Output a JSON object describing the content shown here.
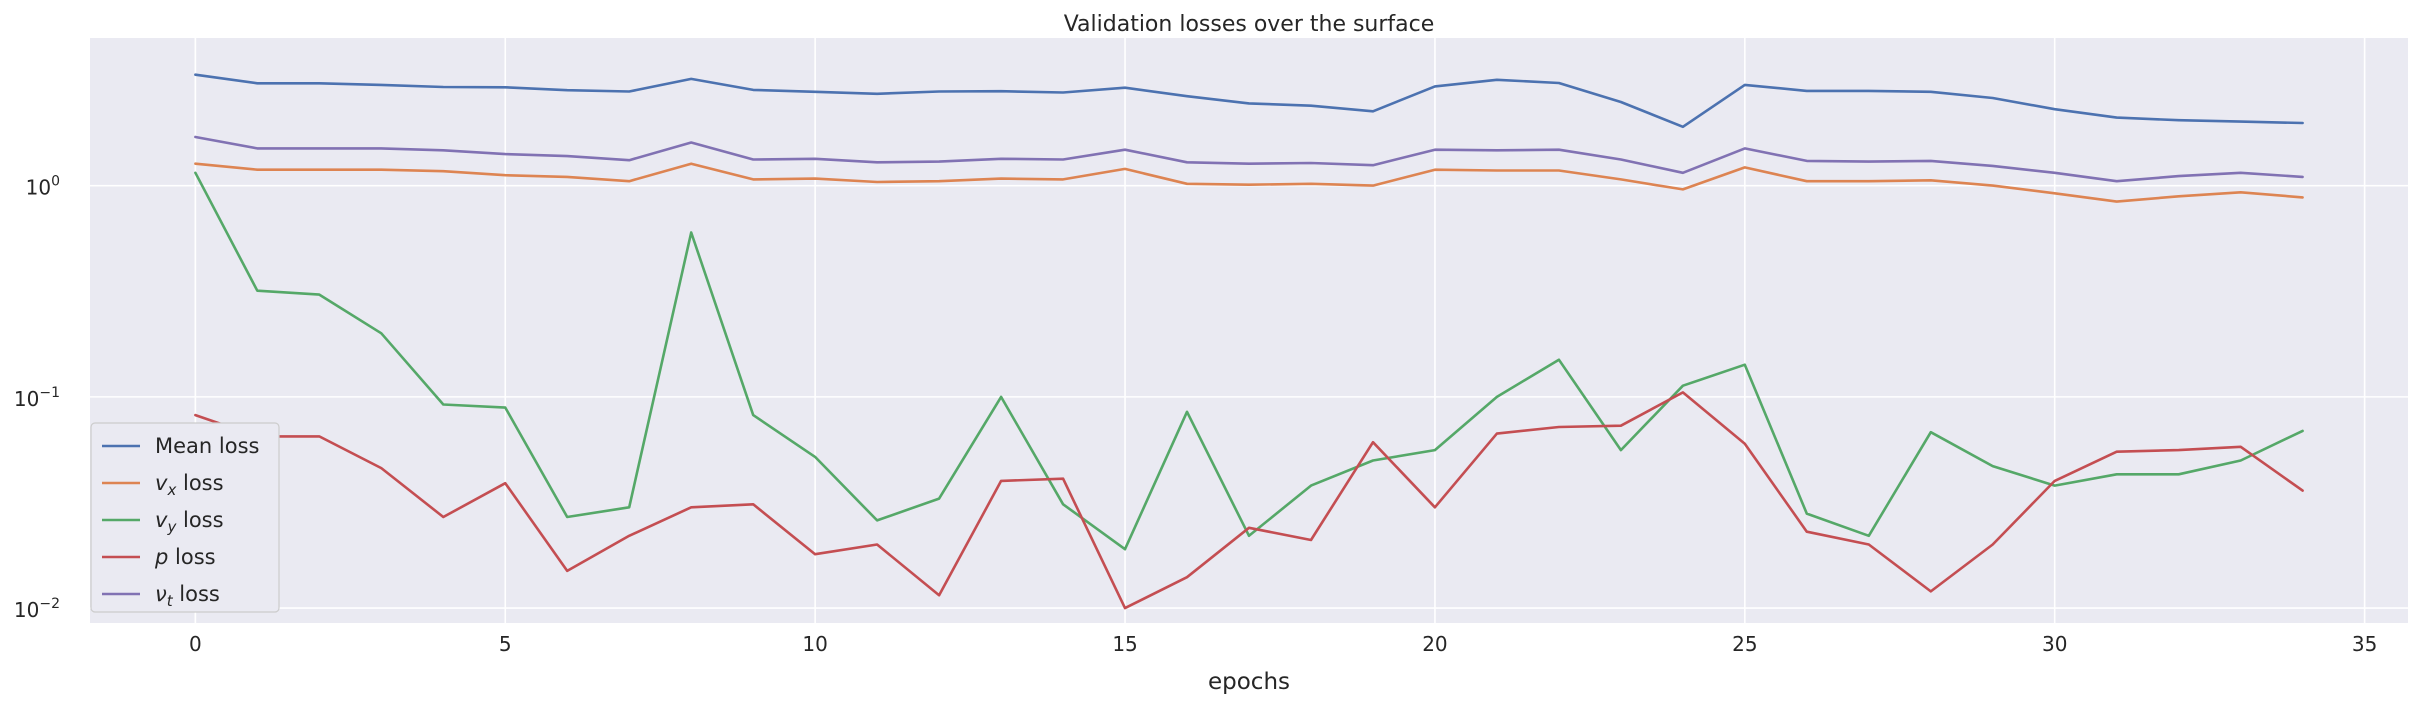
{
  "chart_data": {
    "type": "line",
    "title": "Validation losses over the surface",
    "xlabel": "epochs",
    "ylabel": "",
    "yscale": "log",
    "xlim": [
      -1.7,
      35.7
    ],
    "ylim": [
      0.0085,
      5.0
    ],
    "grid": true,
    "legend_position": "lower-left",
    "x_ticks": [
      0,
      5,
      10,
      15,
      20,
      25,
      30,
      35
    ],
    "x_tick_labels": [
      "0",
      "5",
      "10",
      "15",
      "20",
      "25",
      "30",
      "35"
    ],
    "y_ticks": [
      0.01,
      0.1,
      1
    ],
    "y_tick_labels": [
      {
        "base": "10",
        "exp": "−2"
      },
      {
        "base": "10",
        "exp": "−1"
      },
      {
        "base": "10",
        "exp": "0"
      }
    ],
    "x": [
      0,
      1,
      2,
      3,
      4,
      5,
      6,
      7,
      8,
      9,
      10,
      11,
      12,
      13,
      14,
      15,
      16,
      17,
      18,
      19,
      20,
      21,
      22,
      23,
      24,
      25,
      26,
      27,
      28,
      29,
      30,
      31,
      32,
      33,
      34
    ],
    "series": [
      {
        "name": "Mean loss",
        "legend_main": "Mean loss",
        "legend_sub": "",
        "legend_suffix": "",
        "legend_italic": false,
        "color": "#4c72b0",
        "values": [
          3.35,
          3.05,
          3.05,
          3.0,
          2.93,
          2.92,
          2.83,
          2.79,
          3.2,
          2.84,
          2.78,
          2.72,
          2.79,
          2.8,
          2.76,
          2.91,
          2.65,
          2.45,
          2.39,
          2.25,
          2.95,
          3.17,
          3.06,
          2.49,
          1.9,
          3.0,
          2.81,
          2.81,
          2.78,
          2.6,
          2.3,
          2.1,
          2.04,
          2.01,
          1.98
        ]
      },
      {
        "name": "v_x loss",
        "legend_main": "v",
        "legend_sub": "x",
        "legend_suffix": " loss",
        "legend_italic": true,
        "color": "#dd8452",
        "values": [
          1.27,
          1.19,
          1.19,
          1.19,
          1.17,
          1.12,
          1.1,
          1.05,
          1.27,
          1.07,
          1.08,
          1.04,
          1.05,
          1.08,
          1.07,
          1.2,
          1.02,
          1.01,
          1.02,
          1.0,
          1.19,
          1.18,
          1.18,
          1.07,
          0.96,
          1.22,
          1.05,
          1.05,
          1.06,
          1.0,
          0.92,
          0.84,
          0.89,
          0.93,
          0.88
        ]
      },
      {
        "name": "v_y loss",
        "legend_main": "v",
        "legend_sub": "y",
        "legend_suffix": " loss",
        "legend_italic": true,
        "color": "#55a868",
        "values": [
          1.15,
          0.318,
          0.305,
          0.2,
          0.092,
          0.089,
          0.027,
          0.03,
          0.6,
          0.082,
          0.052,
          0.026,
          0.033,
          0.1,
          0.031,
          0.019,
          0.085,
          0.022,
          0.038,
          0.05,
          0.056,
          0.1,
          0.15,
          0.056,
          0.113,
          0.142,
          0.028,
          0.022,
          0.068,
          0.047,
          0.038,
          0.043,
          0.043,
          0.05,
          0.069
        ]
      },
      {
        "name": "p loss",
        "legend_main": "p",
        "legend_sub": "",
        "legend_suffix": " loss",
        "legend_italic": true,
        "color": "#c44e52",
        "values": [
          0.082,
          0.065,
          0.065,
          0.046,
          0.027,
          0.039,
          0.015,
          0.022,
          0.03,
          0.031,
          0.018,
          0.02,
          0.0115,
          0.04,
          0.041,
          0.01,
          0.014,
          0.024,
          0.021,
          0.061,
          0.03,
          0.067,
          0.072,
          0.073,
          0.105,
          0.06,
          0.023,
          0.02,
          0.012,
          0.02,
          0.04,
          0.055,
          0.056,
          0.058,
          0.036
        ]
      },
      {
        "name": "ν_t loss",
        "legend_main": "ν",
        "legend_sub": "t",
        "legend_suffix": " loss",
        "legend_italic": true,
        "color": "#8172b3",
        "values": [
          1.7,
          1.5,
          1.5,
          1.5,
          1.47,
          1.41,
          1.38,
          1.32,
          1.6,
          1.33,
          1.34,
          1.29,
          1.3,
          1.34,
          1.33,
          1.48,
          1.29,
          1.27,
          1.28,
          1.25,
          1.48,
          1.47,
          1.48,
          1.33,
          1.15,
          1.5,
          1.31,
          1.3,
          1.31,
          1.24,
          1.15,
          1.05,
          1.11,
          1.15,
          1.1
        ]
      }
    ]
  }
}
